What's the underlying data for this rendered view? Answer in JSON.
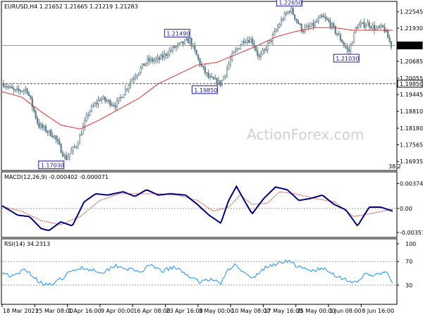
{
  "chart_data": [
    {
      "type": "candlestick",
      "title": "EURUSD,H4  1.21652 1.21665 1.21219 1.21283",
      "watermark": "ActionForex.com",
      "ylim": [
        1.1665,
        1.2288
      ],
      "y_ticks": [
        "1.22545",
        "1.21930",
        "1.21283",
        "1.20685",
        "1.20055",
        "1.19850",
        "1.19445",
        "1.18810",
        "1.18180",
        "1.17565",
        "1.16935"
      ],
      "last_price": "1.21283",
      "hline_value": "1.19850",
      "hline_level": 1.1985,
      "fib_label": "38.2",
      "annotations": [
        {
          "label": "1.17030",
          "price": 1.1703
        },
        {
          "label": "1.21490",
          "price": 1.2149
        },
        {
          "label": "1.19850",
          "price": 1.1985
        },
        {
          "label": "1.22650",
          "price": 1.2265
        },
        {
          "label": "1.21030",
          "price": 1.2103
        }
      ],
      "x_ticks": [
        "18 Mar 2021",
        "25 Mar 08:00",
        "1 Apr 16:00",
        "9 Apr 00:00",
        "16 Apr 08:00",
        "23 Apr 16:00",
        "3 May 00:00",
        "10 May 08:00",
        "17 May 16:00",
        "25 May 00:00",
        "1 Jun 08:00",
        "8 Jun 16:00"
      ],
      "price_path": [
        [
          0,
          1.1985
        ],
        [
          0.03,
          1.1955
        ],
        [
          0.06,
          1.1965
        ],
        [
          0.09,
          1.183
        ],
        [
          0.13,
          1.179
        ],
        [
          0.16,
          1.1703
        ],
        [
          0.19,
          1.176
        ],
        [
          0.22,
          1.188
        ],
        [
          0.25,
          1.193
        ],
        [
          0.29,
          1.1905
        ],
        [
          0.33,
          1.2
        ],
        [
          0.37,
          1.207
        ],
        [
          0.4,
          1.2075
        ],
        [
          0.44,
          1.212
        ],
        [
          0.48,
          1.2149
        ],
        [
          0.51,
          1.205
        ],
        [
          0.53,
          1.2005
        ],
        [
          0.56,
          1.1985
        ],
        [
          0.59,
          1.209
        ],
        [
          0.62,
          1.215
        ],
        [
          0.64,
          1.215
        ],
        [
          0.66,
          1.208
        ],
        [
          0.69,
          1.215
        ],
        [
          0.72,
          1.223
        ],
        [
          0.74,
          1.2265
        ],
        [
          0.77,
          1.2185
        ],
        [
          0.8,
          1.2205
        ],
        [
          0.82,
          1.2235
        ],
        [
          0.84,
          1.2215
        ],
        [
          0.87,
          1.215
        ],
        [
          0.89,
          1.2103
        ],
        [
          0.91,
          1.22
        ],
        [
          0.94,
          1.221
        ],
        [
          0.96,
          1.219
        ],
        [
          0.98,
          1.2195
        ],
        [
          1.0,
          1.2128
        ]
      ],
      "ma_path": [
        [
          0,
          1.1955
        ],
        [
          0.05,
          1.1935
        ],
        [
          0.1,
          1.188
        ],
        [
          0.15,
          1.183
        ],
        [
          0.2,
          1.1815
        ],
        [
          0.25,
          1.185
        ],
        [
          0.3,
          1.189
        ],
        [
          0.35,
          1.193
        ],
        [
          0.4,
          1.1985
        ],
        [
          0.45,
          1.202
        ],
        [
          0.5,
          1.2055
        ],
        [
          0.55,
          1.2065
        ],
        [
          0.6,
          1.2095
        ],
        [
          0.65,
          1.2125
        ],
        [
          0.7,
          1.216
        ],
        [
          0.75,
          1.218
        ],
        [
          0.8,
          1.2195
        ],
        [
          0.85,
          1.2195
        ],
        [
          0.9,
          1.2185
        ],
        [
          0.95,
          1.2185
        ],
        [
          1.0,
          1.2185
        ]
      ]
    },
    {
      "type": "line",
      "title": "MACD(12,26,9) -0.000402 -0.000071",
      "y_ticks": [
        "0.003747",
        "0.00",
        "-0.003573"
      ],
      "ylim": [
        -0.004,
        0.0042
      ],
      "series": [
        {
          "name": "MACD",
          "color": "#000080",
          "values": [
            [
              0,
              0.0004
            ],
            [
              0.04,
              -0.001
            ],
            [
              0.07,
              -0.0012
            ],
            [
              0.1,
              -0.003
            ],
            [
              0.12,
              -0.0033
            ],
            [
              0.15,
              -0.002
            ],
            [
              0.18,
              -0.0026
            ],
            [
              0.21,
              0.001
            ],
            [
              0.24,
              0.0022
            ],
            [
              0.27,
              0.002
            ],
            [
              0.31,
              0.0025
            ],
            [
              0.34,
              0.0018
            ],
            [
              0.37,
              0.0028
            ],
            [
              0.4,
              0.002
            ],
            [
              0.43,
              0.0022
            ],
            [
              0.47,
              0.002
            ],
            [
              0.5,
              0.0006
            ],
            [
              0.53,
              -0.001
            ],
            [
              0.56,
              -0.0022
            ],
            [
              0.58,
              0.0012
            ],
            [
              0.6,
              0.0033
            ],
            [
              0.62,
              0.0012
            ],
            [
              0.64,
              -0.0008
            ],
            [
              0.67,
              0.0015
            ],
            [
              0.7,
              0.0032
            ],
            [
              0.73,
              0.0028
            ],
            [
              0.76,
              0.0012
            ],
            [
              0.79,
              0.0015
            ],
            [
              0.82,
              0.002
            ],
            [
              0.85,
              0.0006
            ],
            [
              0.88,
              -0.0002
            ],
            [
              0.91,
              -0.0026
            ],
            [
              0.94,
              0.0002
            ],
            [
              0.97,
              0.0002
            ],
            [
              1.0,
              -0.0004
            ]
          ]
        },
        {
          "name": "Signal",
          "color": "#e04040",
          "values": [
            [
              0,
              0.0003
            ],
            [
              0.05,
              -0.0004
            ],
            [
              0.1,
              -0.0018
            ],
            [
              0.15,
              -0.0024
            ],
            [
              0.2,
              -0.0012
            ],
            [
              0.25,
              0.0012
            ],
            [
              0.3,
              0.0022
            ],
            [
              0.35,
              0.0022
            ],
            [
              0.4,
              0.0022
            ],
            [
              0.45,
              0.002
            ],
            [
              0.5,
              0.0012
            ],
            [
              0.54,
              -0.0004
            ],
            [
              0.58,
              0.0002
            ],
            [
              0.61,
              0.002
            ],
            [
              0.64,
              0.0006
            ],
            [
              0.68,
              0.0008
            ],
            [
              0.71,
              0.0025
            ],
            [
              0.75,
              0.0022
            ],
            [
              0.8,
              0.0015
            ],
            [
              0.85,
              0.001
            ],
            [
              0.9,
              -0.0012
            ],
            [
              0.94,
              -0.0008
            ],
            [
              1.0,
              -0.0001
            ]
          ]
        }
      ]
    },
    {
      "type": "line",
      "title": "RSI(14) 34.2313",
      "y_ticks": [
        "100",
        "70",
        "30",
        "0"
      ],
      "ylim": [
        0,
        100
      ],
      "levels": [
        70,
        30
      ],
      "series": [
        {
          "name": "RSI",
          "color": "#1e90ff",
          "values": [
            [
              0,
              52
            ],
            [
              0.03,
              44
            ],
            [
              0.06,
              58
            ],
            [
              0.09,
              38
            ],
            [
              0.12,
              30
            ],
            [
              0.14,
              35
            ],
            [
              0.17,
              50
            ],
            [
              0.2,
              60
            ],
            [
              0.23,
              56
            ],
            [
              0.26,
              52
            ],
            [
              0.29,
              64
            ],
            [
              0.32,
              58
            ],
            [
              0.35,
              52
            ],
            [
              0.38,
              62
            ],
            [
              0.41,
              54
            ],
            [
              0.44,
              60
            ],
            [
              0.47,
              50
            ],
            [
              0.5,
              36
            ],
            [
              0.53,
              40
            ],
            [
              0.56,
              34
            ],
            [
              0.58,
              56
            ],
            [
              0.6,
              66
            ],
            [
              0.62,
              50
            ],
            [
              0.64,
              40
            ],
            [
              0.67,
              58
            ],
            [
              0.7,
              66
            ],
            [
              0.73,
              72
            ],
            [
              0.76,
              60
            ],
            [
              0.79,
              54
            ],
            [
              0.82,
              58
            ],
            [
              0.85,
              48
            ],
            [
              0.88,
              40
            ],
            [
              0.91,
              32
            ],
            [
              0.93,
              50
            ],
            [
              0.96,
              46
            ],
            [
              0.98,
              54
            ],
            [
              1.0,
              34
            ]
          ]
        }
      ]
    }
  ]
}
